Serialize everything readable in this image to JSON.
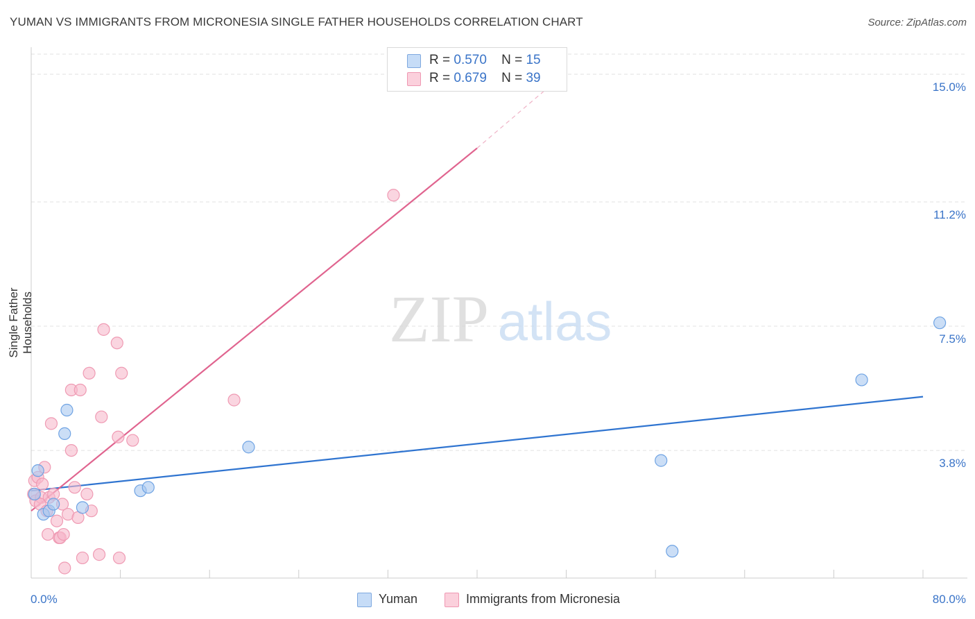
{
  "title": "YUMAN VS IMMIGRANTS FROM MICRONESIA SINGLE FATHER HOUSEHOLDS CORRELATION CHART",
  "source": "Source: ZipAtlas.com",
  "watermark": {
    "zip": "ZIP",
    "atlas": "atlas"
  },
  "legend_top": [
    {
      "r_label": "R =",
      "r_value": "0.570",
      "n_label": "N =",
      "n_value": "15",
      "color": "#a9c8f0"
    },
    {
      "r_label": "R =",
      "r_value": "0.679",
      "n_label": "N =",
      "n_value": "39",
      "color": "#f7b9cb"
    }
  ],
  "legend_bottom": [
    {
      "label": "Yuman",
      "color": "#a9c8f0"
    },
    {
      "label": "Immigrants from Micronesia",
      "color": "#f7b9cb"
    }
  ],
  "chart_data": {
    "type": "scatter",
    "title": "YUMAN VS IMMIGRANTS FROM MICRONESIA SINGLE FATHER HOUSEHOLDS CORRELATION CHART",
    "xlabel": "",
    "ylabel": "Single Father Households",
    "xlim": [
      0,
      80
    ],
    "ylim": [
      0,
      15.6
    ],
    "x_tick_labels": [
      "0.0%",
      "80.0%"
    ],
    "y_ticks": [
      3.8,
      7.5,
      11.2,
      15.0
    ],
    "y_tick_labels": [
      "3.8%",
      "7.5%",
      "11.2%",
      "15.0%"
    ],
    "grid": true,
    "series": [
      {
        "name": "Yuman",
        "color": "#6fa3e3",
        "fill": "#a9c8f0",
        "line_color": "#2f74d0",
        "trend": {
          "x0": 0,
          "y0": 2.6,
          "x1": 80,
          "y1": 5.4
        },
        "points": [
          [
            0.3,
            2.5
          ],
          [
            0.6,
            3.2
          ],
          [
            1.1,
            1.9
          ],
          [
            1.6,
            2.0
          ],
          [
            2.0,
            2.2
          ],
          [
            3.0,
            4.3
          ],
          [
            3.2,
            5.0
          ],
          [
            4.6,
            2.1
          ],
          [
            9.8,
            2.6
          ],
          [
            10.5,
            2.7
          ],
          [
            19.5,
            3.9
          ],
          [
            56.5,
            3.5
          ],
          [
            57.5,
            0.8
          ],
          [
            74.5,
            5.9
          ],
          [
            81.5,
            7.6
          ]
        ]
      },
      {
        "name": "Immigrants from Micronesia",
        "color": "#ef9ab3",
        "fill": "#f7b9cb",
        "line_color": "#e0648f",
        "trend": {
          "x0": 0,
          "y0": 2.0,
          "x1": 40,
          "y1": 12.8
        },
        "trend_dashed": {
          "x0": 40,
          "y0": 12.8,
          "x1": 46,
          "y1": 14.5
        },
        "points": [
          [
            0.2,
            2.5
          ],
          [
            0.3,
            2.9
          ],
          [
            0.4,
            2.3
          ],
          [
            0.6,
            3.0
          ],
          [
            0.9,
            2.4
          ],
          [
            1.0,
            2.8
          ],
          [
            1.2,
            3.3
          ],
          [
            1.5,
            1.3
          ],
          [
            1.6,
            2.4
          ],
          [
            1.8,
            4.6
          ],
          [
            2.0,
            2.5
          ],
          [
            2.3,
            1.7
          ],
          [
            2.5,
            1.2
          ],
          [
            2.6,
            1.2
          ],
          [
            2.8,
            2.2
          ],
          [
            2.9,
            1.3
          ],
          [
            3.0,
            0.3
          ],
          [
            3.3,
            1.9
          ],
          [
            3.6,
            3.8
          ],
          [
            3.6,
            5.6
          ],
          [
            3.9,
            2.7
          ],
          [
            4.2,
            1.8
          ],
          [
            4.4,
            5.6
          ],
          [
            4.6,
            0.6
          ],
          [
            5.0,
            2.5
          ],
          [
            5.2,
            6.1
          ],
          [
            5.4,
            2.0
          ],
          [
            6.1,
            0.7
          ],
          [
            6.3,
            4.8
          ],
          [
            6.5,
            7.4
          ],
          [
            7.7,
            7.0
          ],
          [
            7.8,
            4.2
          ],
          [
            8.1,
            6.1
          ],
          [
            9.1,
            4.1
          ],
          [
            18.2,
            5.3
          ],
          [
            32.5,
            11.4
          ],
          [
            7.9,
            0.6
          ],
          [
            0.8,
            2.2
          ],
          [
            1.4,
            2.0
          ]
        ]
      }
    ]
  }
}
